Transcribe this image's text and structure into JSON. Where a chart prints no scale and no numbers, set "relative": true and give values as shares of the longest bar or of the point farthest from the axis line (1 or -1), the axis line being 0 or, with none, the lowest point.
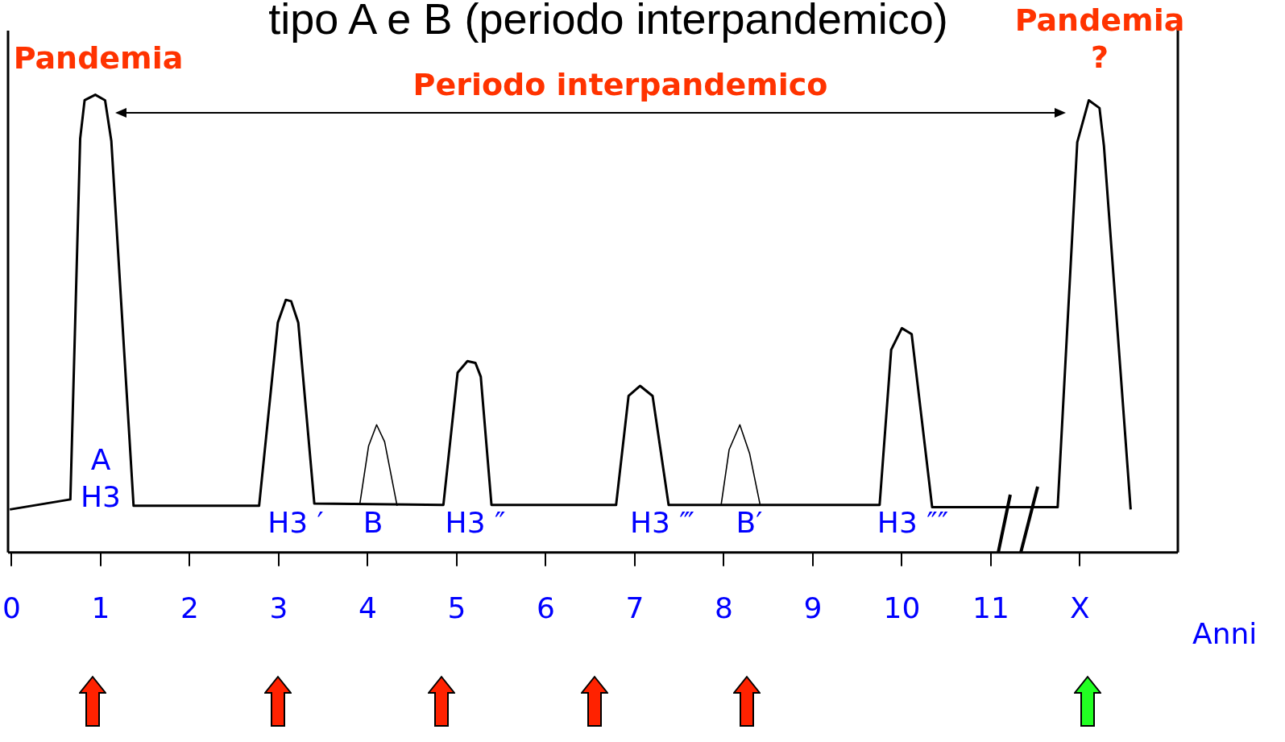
{
  "chart_data": {
    "type": "line",
    "title": "tipo A e B (periodo interpandemico)",
    "xlabel": "Anni",
    "relative": true,
    "legend": false,
    "grid": false,
    "marker": "none",
    "xlim": [
      -0.04,
      13.1
    ],
    "xticks": [
      {
        "value": 0,
        "label": "0"
      },
      1,
      2,
      3,
      4,
      5,
      6,
      7,
      8,
      9,
      10,
      11,
      {
        "value": 12,
        "label": "X"
      }
    ],
    "series": [
      {
        "color": "#000000",
        "x": [
          -0.02,
          0.66,
          0.77,
          0.82,
          0.94,
          1.05,
          1.12,
          1.37,
          2.78,
          2.99,
          3.08,
          3.14,
          3.22,
          3.4,
          4.85,
          5.01,
          5.12,
          5.21,
          5.27,
          5.39,
          6.79,
          6.93,
          7.06,
          7.2,
          7.38,
          9.75,
          9.88,
          10.0,
          10.11,
          10.34,
          11.75,
          11.97,
          12.1,
          12.22,
          12.27,
          12.57
        ],
        "values": [
          0.094,
          0.116,
          0.904,
          0.988,
          1.0,
          0.988,
          0.899,
          0.102,
          0.102,
          0.502,
          0.552,
          0.549,
          0.502,
          0.107,
          0.104,
          0.393,
          0.418,
          0.414,
          0.384,
          0.104,
          0.104,
          0.342,
          0.364,
          0.342,
          0.104,
          0.104,
          0.443,
          0.49,
          0.477,
          0.099,
          0.099,
          0.896,
          0.988,
          0.971,
          0.888,
          0.094
        ]
      },
      {
        "color": "#000000",
        "x": [
          3.91,
          4.01,
          4.1,
          4.19,
          4.33
        ],
        "values": [
          0.104,
          0.233,
          0.279,
          0.242,
          0.102
        ]
      },
      {
        "color": "#000000",
        "x": [
          7.97,
          8.06,
          8.18,
          8.29,
          8.41
        ],
        "values": [
          0.104,
          0.225,
          0.279,
          0.216,
          0.102
        ]
      }
    ],
    "annotations": [
      "Pandemia",
      "Periodo interpandemico",
      "Pandemia\n?",
      "A",
      "H3",
      "H3 ′",
      "B",
      "H3 ″",
      "H3 ‴",
      "B′",
      "H3 ″″"
    ]
  }
}
